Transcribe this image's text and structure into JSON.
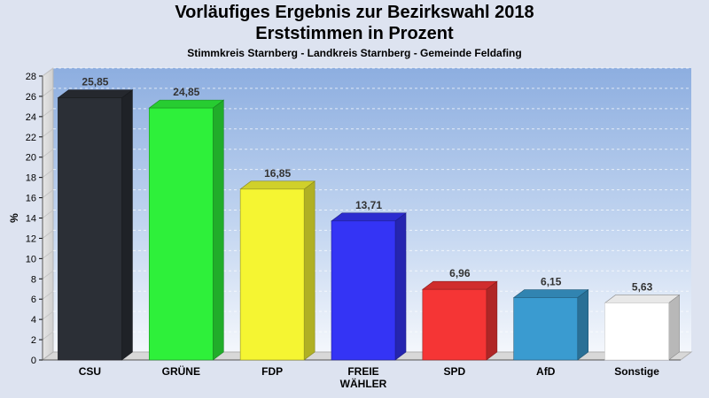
{
  "chart_data": {
    "type": "bar",
    "title": "Vorläufiges Ergebnis zur Bezirkswahl 2018",
    "subtitle": "Erststimmen in Prozent",
    "note": "Stimmkreis Starnberg - Landkreis Starnberg - Gemeinde Feldafing",
    "ylabel": "%",
    "ylim": [
      0,
      28
    ],
    "yticks": [
      0,
      2,
      4,
      6,
      8,
      10,
      12,
      14,
      16,
      18,
      20,
      22,
      24,
      26,
      28
    ],
    "grid": true,
    "categories": [
      "CSU",
      "GRÜNE",
      "FDP",
      "FREIE WÄHLER",
      "SPD",
      "AfD",
      "Sonstige"
    ],
    "category_lines": [
      [
        "CSU"
      ],
      [
        "GRÜNE"
      ],
      [
        "FDP"
      ],
      [
        "FREIE",
        "WÄHLER"
      ],
      [
        "SPD"
      ],
      [
        "AfD"
      ],
      [
        "Sonstige"
      ]
    ],
    "values": [
      25.85,
      24.85,
      16.85,
      13.71,
      6.96,
      6.15,
      5.63
    ],
    "value_labels": [
      "25,85",
      "24,85",
      "16,85",
      "13,71",
      "6,96",
      "6,15",
      "5,63"
    ],
    "colors": [
      "#2b2f36",
      "#2ef03a",
      "#f5f532",
      "#3434f5",
      "#f53535",
      "#3a9bd0",
      "#ffffff"
    ]
  }
}
